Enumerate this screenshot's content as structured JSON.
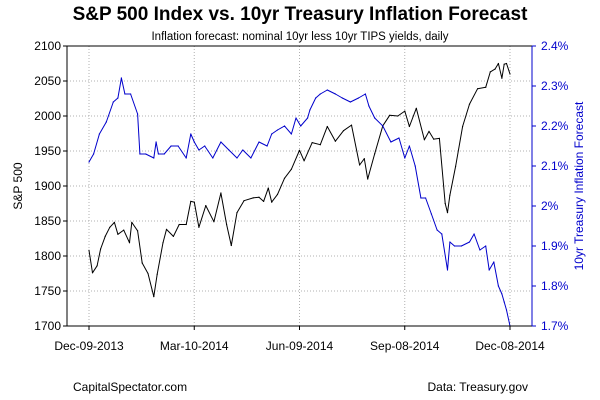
{
  "chart_data": {
    "type": "line",
    "title": "S&P 500 Index vs. 10yr Treasury Inflation Forecast",
    "subtitle": "Inflation forecast: nominal 10yr less 10yr TIPS yields, daily",
    "ylabel_left": "S&P 500",
    "ylabel_right": "10yr Treasury Inflation Forecast",
    "ylim_left": [
      1700,
      2100
    ],
    "ylim_right": [
      1.7,
      2.4
    ],
    "yticks_left": [
      "1700",
      "1750",
      "1800",
      "1850",
      "1900",
      "1950",
      "2000",
      "2050",
      "2100"
    ],
    "yticks_right": [
      "1.7%",
      "1.8%",
      "1.9%",
      "2%",
      "2.1%",
      "2.2%",
      "2.3%",
      "2.4%"
    ],
    "x_tick_labels": [
      "Dec-09-2013",
      "Mar-10-2014",
      "Jun-09-2014",
      "Sep-08-2014",
      "Dec-08-2014"
    ],
    "x_range": [
      "2013-12-09",
      "2014-12-08"
    ],
    "grid": true,
    "series": [
      {
        "axis": "left",
        "color": "#000000",
        "points": [
          [
            "2013-12-09",
            1808
          ],
          [
            "2013-12-12",
            1776
          ],
          [
            "2013-12-16",
            1786
          ],
          [
            "2013-12-19",
            1810
          ],
          [
            "2013-12-23",
            1828
          ],
          [
            "2013-12-27",
            1841
          ],
          [
            "2013-12-31",
            1848
          ],
          [
            "2014-01-03",
            1831
          ],
          [
            "2014-01-08",
            1837
          ],
          [
            "2014-01-13",
            1819
          ],
          [
            "2014-01-15",
            1848
          ],
          [
            "2014-01-20",
            1836
          ],
          [
            "2014-01-24",
            1790
          ],
          [
            "2014-01-29",
            1775
          ],
          [
            "2014-02-03",
            1742
          ],
          [
            "2014-02-06",
            1774
          ],
          [
            "2014-02-11",
            1819
          ],
          [
            "2014-02-14",
            1838
          ],
          [
            "2014-02-20",
            1828
          ],
          [
            "2014-02-25",
            1845
          ],
          [
            "2014-03-03",
            1845
          ],
          [
            "2014-03-07",
            1878
          ],
          [
            "2014-03-10",
            1877
          ],
          [
            "2014-03-14",
            1841
          ],
          [
            "2014-03-20",
            1872
          ],
          [
            "2014-03-27",
            1849
          ],
          [
            "2014-04-02",
            1890
          ],
          [
            "2014-04-07",
            1845
          ],
          [
            "2014-04-11",
            1815
          ],
          [
            "2014-04-16",
            1862
          ],
          [
            "2014-04-22",
            1879
          ],
          [
            "2014-04-30",
            1883
          ],
          [
            "2014-05-05",
            1884
          ],
          [
            "2014-05-09",
            1878
          ],
          [
            "2014-05-13",
            1897
          ],
          [
            "2014-05-16",
            1877
          ],
          [
            "2014-05-21",
            1888
          ],
          [
            "2014-05-27",
            1911
          ],
          [
            "2014-06-02",
            1924
          ],
          [
            "2014-06-09",
            1951
          ],
          [
            "2014-06-13",
            1936
          ],
          [
            "2014-06-20",
            1962
          ],
          [
            "2014-06-27",
            1959
          ],
          [
            "2014-07-03",
            1985
          ],
          [
            "2014-07-10",
            1964
          ],
          [
            "2014-07-17",
            1979
          ],
          [
            "2014-07-24",
            1987
          ],
          [
            "2014-07-31",
            1930
          ],
          [
            "2014-08-04",
            1939
          ],
          [
            "2014-08-07",
            1910
          ],
          [
            "2014-08-13",
            1946
          ],
          [
            "2014-08-20",
            1986
          ],
          [
            "2014-08-26",
            2001
          ],
          [
            "2014-09-02",
            2000
          ],
          [
            "2014-09-08",
            2007
          ],
          [
            "2014-09-12",
            1985
          ],
          [
            "2014-09-18",
            2011
          ],
          [
            "2014-09-25",
            1966
          ],
          [
            "2014-09-29",
            1978
          ],
          [
            "2014-10-03",
            1967
          ],
          [
            "2014-10-08",
            1968
          ],
          [
            "2014-10-13",
            1875
          ],
          [
            "2014-10-15",
            1862
          ],
          [
            "2014-10-17",
            1887
          ],
          [
            "2014-10-22",
            1928
          ],
          [
            "2014-10-28",
            1985
          ],
          [
            "2014-11-03",
            2017
          ],
          [
            "2014-11-10",
            2039
          ],
          [
            "2014-11-17",
            2041
          ],
          [
            "2014-11-21",
            2063
          ],
          [
            "2014-11-25",
            2067
          ],
          [
            "2014-11-28",
            2075
          ],
          [
            "2014-12-01",
            2054
          ],
          [
            "2014-12-03",
            2074
          ],
          [
            "2014-12-05",
            2075
          ],
          [
            "2014-12-08",
            2060
          ]
        ]
      },
      {
        "axis": "right",
        "color": "#0000cc",
        "points": [
          [
            "2013-12-09",
            2.11
          ],
          [
            "2013-12-13",
            2.13
          ],
          [
            "2013-12-18",
            2.18
          ],
          [
            "2013-12-24",
            2.21
          ],
          [
            "2013-12-30",
            2.26
          ],
          [
            "2014-01-03",
            2.27
          ],
          [
            "2014-01-06",
            2.32
          ],
          [
            "2014-01-09",
            2.28
          ],
          [
            "2014-01-14",
            2.28
          ],
          [
            "2014-01-20",
            2.23
          ],
          [
            "2014-01-22",
            2.13
          ],
          [
            "2014-01-27",
            2.13
          ],
          [
            "2014-02-03",
            2.12
          ],
          [
            "2014-02-05",
            2.16
          ],
          [
            "2014-02-07",
            2.13
          ],
          [
            "2014-02-12",
            2.13
          ],
          [
            "2014-02-18",
            2.15
          ],
          [
            "2014-02-24",
            2.15
          ],
          [
            "2014-03-03",
            2.12
          ],
          [
            "2014-03-07",
            2.18
          ],
          [
            "2014-03-10",
            2.16
          ],
          [
            "2014-03-14",
            2.14
          ],
          [
            "2014-03-19",
            2.15
          ],
          [
            "2014-03-26",
            2.12
          ],
          [
            "2014-04-02",
            2.16
          ],
          [
            "2014-04-09",
            2.14
          ],
          [
            "2014-04-16",
            2.12
          ],
          [
            "2014-04-21",
            2.14
          ],
          [
            "2014-04-28",
            2.12
          ],
          [
            "2014-05-05",
            2.16
          ],
          [
            "2014-05-12",
            2.15
          ],
          [
            "2014-05-16",
            2.18
          ],
          [
            "2014-05-21",
            2.19
          ],
          [
            "2014-05-27",
            2.2
          ],
          [
            "2014-06-02",
            2.18
          ],
          [
            "2014-06-06",
            2.22
          ],
          [
            "2014-06-10",
            2.2
          ],
          [
            "2014-06-16",
            2.22
          ],
          [
            "2014-06-18",
            2.24
          ],
          [
            "2014-06-23",
            2.27
          ],
          [
            "2014-06-27",
            2.28
          ],
          [
            "2014-07-03",
            2.29
          ],
          [
            "2014-07-10",
            2.28
          ],
          [
            "2014-07-16",
            2.27
          ],
          [
            "2014-07-23",
            2.26
          ],
          [
            "2014-07-30",
            2.27
          ],
          [
            "2014-08-05",
            2.28
          ],
          [
            "2014-08-08",
            2.25
          ],
          [
            "2014-08-13",
            2.22
          ],
          [
            "2014-08-20",
            2.2
          ],
          [
            "2014-08-27",
            2.16
          ],
          [
            "2014-09-03",
            2.17
          ],
          [
            "2014-09-08",
            2.12
          ],
          [
            "2014-09-12",
            2.15
          ],
          [
            "2014-09-17",
            2.1
          ],
          [
            "2014-09-22",
            2.02
          ],
          [
            "2014-09-26",
            2.02
          ],
          [
            "2014-10-01",
            1.98
          ],
          [
            "2014-10-06",
            1.94
          ],
          [
            "2014-10-10",
            1.93
          ],
          [
            "2014-10-15",
            1.84
          ],
          [
            "2014-10-17",
            1.91
          ],
          [
            "2014-10-21",
            1.9
          ],
          [
            "2014-10-27",
            1.9
          ],
          [
            "2014-11-03",
            1.91
          ],
          [
            "2014-11-07",
            1.93
          ],
          [
            "2014-11-12",
            1.89
          ],
          [
            "2014-11-17",
            1.9
          ],
          [
            "2014-11-20",
            1.84
          ],
          [
            "2014-11-24",
            1.86
          ],
          [
            "2014-11-28",
            1.8
          ],
          [
            "2014-12-01",
            1.78
          ],
          [
            "2014-12-03",
            1.76
          ],
          [
            "2014-12-05",
            1.74
          ],
          [
            "2014-12-08",
            1.7
          ]
        ]
      }
    ]
  },
  "footer": {
    "left": "CapitalSpectator.com",
    "right": "Data: Treasury.gov"
  }
}
